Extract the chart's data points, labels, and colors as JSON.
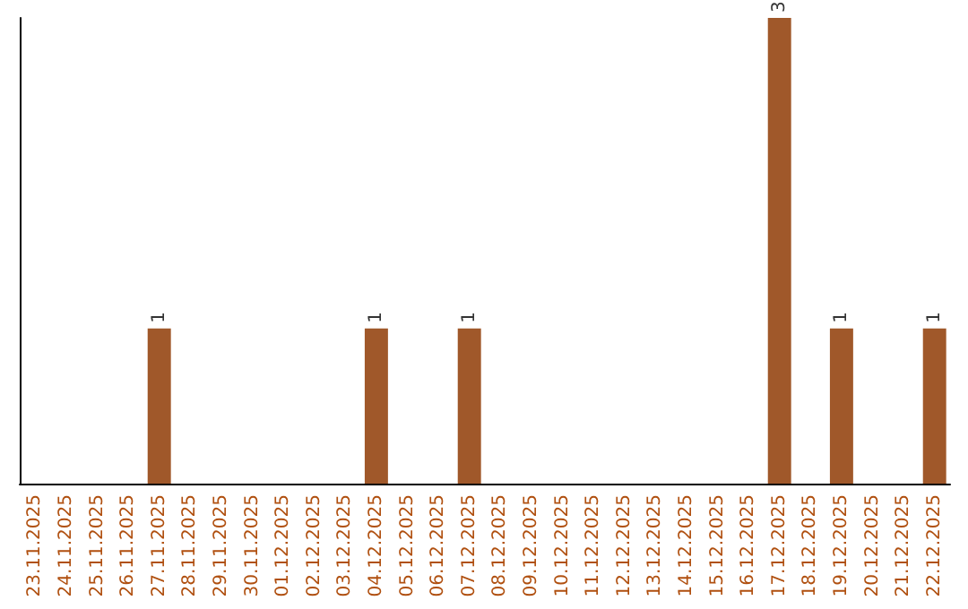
{
  "chart_data": {
    "type": "bar",
    "categories": [
      "23.11.2025",
      "24.11.2025",
      "25.11.2025",
      "26.11.2025",
      "27.11.2025",
      "28.11.2025",
      "29.11.2025",
      "30.11.2025",
      "01.12.2025",
      "02.12.2025",
      "03.12.2025",
      "04.12.2025",
      "05.12.2025",
      "06.12.2025",
      "07.12.2025",
      "08.12.2025",
      "09.12.2025",
      "10.12.2025",
      "11.12.2025",
      "12.12.2025",
      "13.12.2025",
      "14.12.2025",
      "15.12.2025",
      "16.12.2025",
      "17.12.2025",
      "18.12.2025",
      "19.12.2025",
      "20.12.2025",
      "21.12.2025",
      "22.12.2025"
    ],
    "values": [
      0,
      0,
      0,
      0,
      1,
      0,
      0,
      0,
      0,
      0,
      0,
      1,
      0,
      0,
      1,
      0,
      0,
      0,
      0,
      0,
      0,
      0,
      0,
      0,
      3,
      0,
      1,
      0,
      0,
      1
    ],
    "color": "#a0582a",
    "value_labels": [
      null,
      null,
      null,
      null,
      "1",
      null,
      null,
      null,
      null,
      null,
      null,
      "1",
      null,
      null,
      "1",
      null,
      null,
      null,
      null,
      null,
      null,
      null,
      null,
      null,
      "3",
      null,
      "1",
      null,
      null,
      "1"
    ],
    "tick_labels": "x"
  }
}
